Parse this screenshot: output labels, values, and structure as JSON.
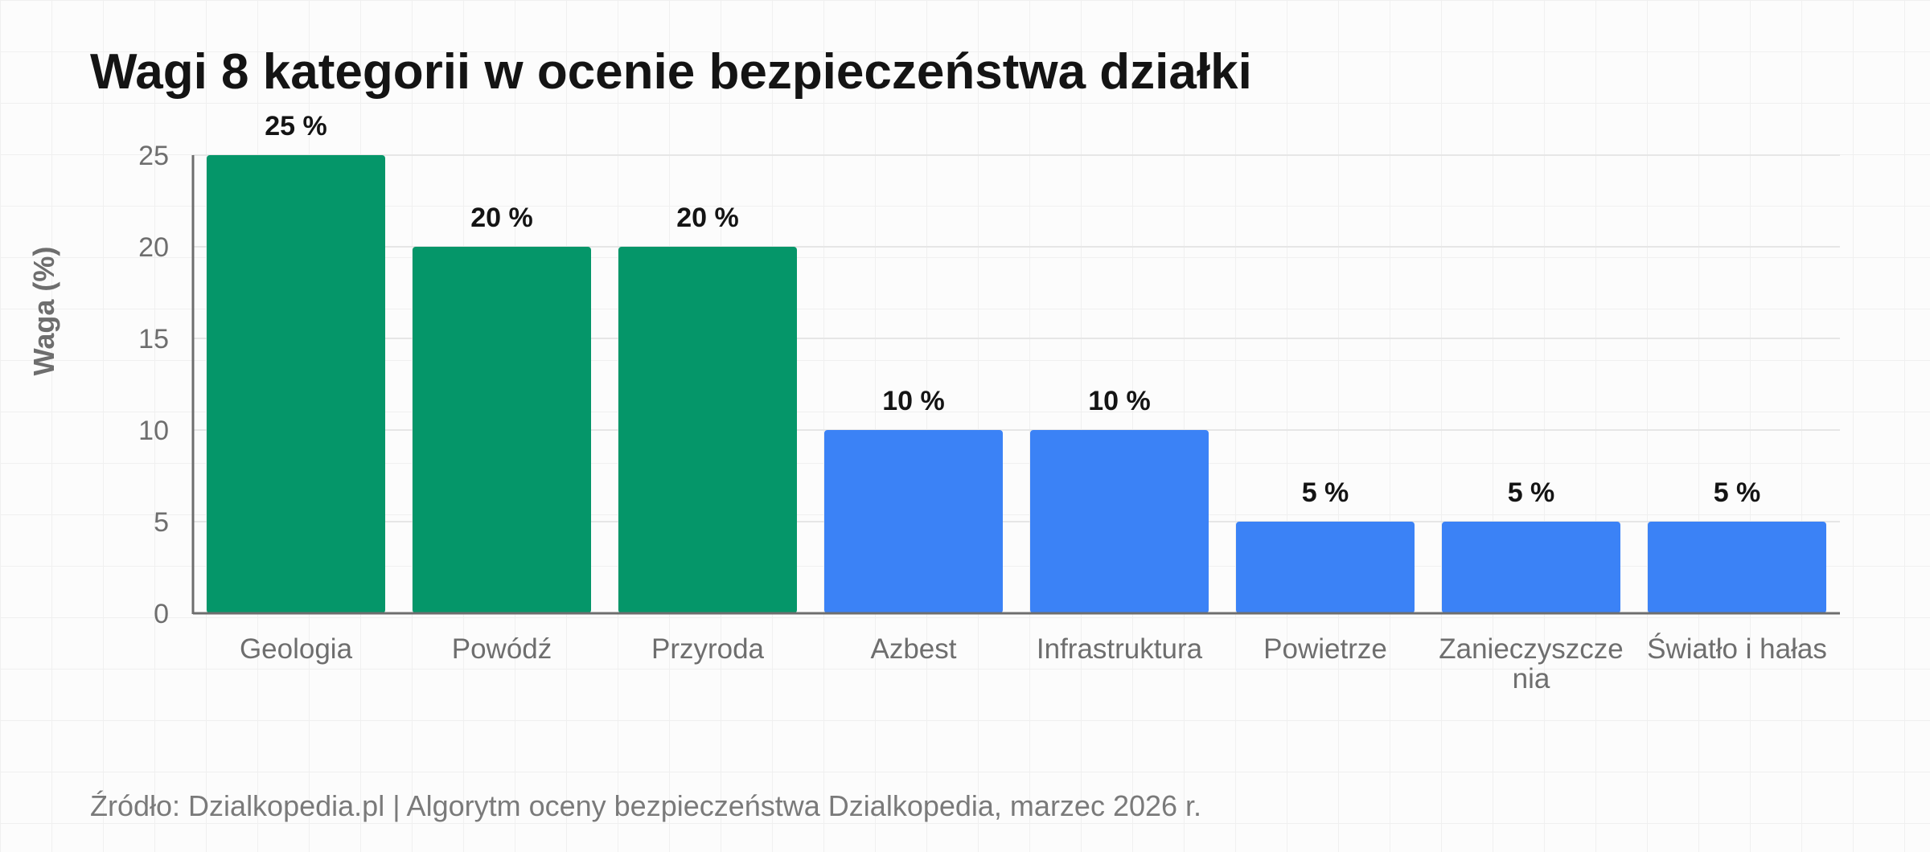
{
  "chart_data": {
    "type": "bar",
    "title": "Wagi 8 kategorii w ocenie bezpieczeństwa działki",
    "ylabel": "Waga (%)",
    "xlabel": "",
    "categories": [
      "Geologia",
      "Powódź",
      "Przyroda",
      "Azbest",
      "Infrastruktura",
      "Powietrze",
      "Zanieczyszczenia",
      "Światło i hałas"
    ],
    "category_label_lines": [
      [
        "Geologia"
      ],
      [
        "Powódź"
      ],
      [
        "Przyroda"
      ],
      [
        "Azbest"
      ],
      [
        "Infrastruktura"
      ],
      [
        "Powietrze"
      ],
      [
        "Zanieczyszcze",
        "nia"
      ],
      [
        "Światło i hałas"
      ]
    ],
    "values": [
      25,
      20,
      20,
      10,
      10,
      5,
      5,
      5
    ],
    "value_labels": [
      "25 %",
      "20 %",
      "20 %",
      "10 %",
      "10 %",
      "5 %",
      "5 %",
      "5 %"
    ],
    "bar_colors": [
      "#059669",
      "#059669",
      "#059669",
      "#3b82f6",
      "#3b82f6",
      "#3b82f6",
      "#3b82f6",
      "#3b82f6"
    ],
    "ylim": [
      0,
      25
    ],
    "yticks": [
      0,
      5,
      10,
      15,
      20,
      25
    ],
    "grid": true,
    "legend": "none"
  },
  "source_note": "Źródło: Dzialkopedia.pl | Algorytm oceny bezpieczeństwa Dzialkopedia, marzec 2026 r.",
  "colors": {
    "high_weight": "#059669",
    "low_weight": "#3b82f6",
    "axis": "#6e6e6e",
    "gridline": "#e6e6e6"
  }
}
